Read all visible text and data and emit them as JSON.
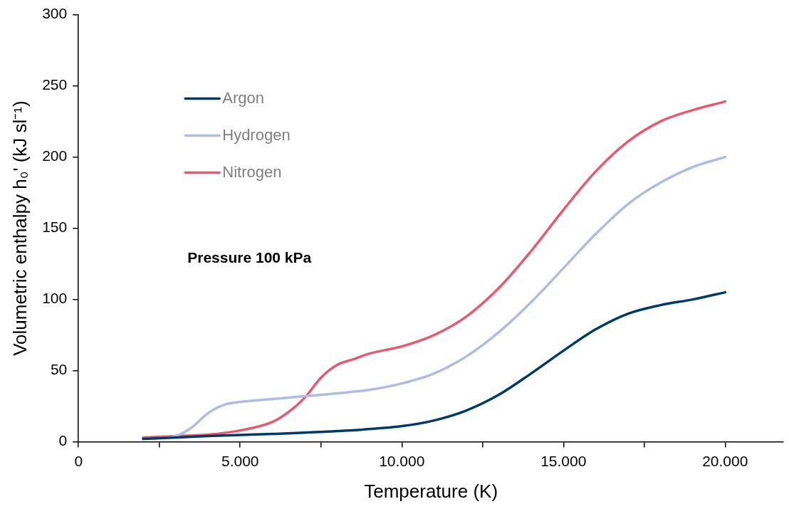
{
  "chart_data": {
    "type": "line",
    "xlabel": "Temperature (K)",
    "ylabel": "Volumetric enthalpy h₀' (kJ sl⁻¹)",
    "annotations": [
      "Pressure 100 kPa"
    ],
    "xlim": [
      0,
      21800
    ],
    "xticks": [
      0,
      {
        "value": 2500,
        "label": null
      },
      {
        "value": 5000,
        "label": "5.000"
      },
      {
        "value": 7500,
        "label": null
      },
      {
        "value": 10000,
        "label": "10.000"
      },
      {
        "value": 12500,
        "label": null
      },
      {
        "value": 15000,
        "label": "15.000"
      },
      {
        "value": 17500,
        "label": null
      },
      {
        "value": 20000,
        "label": "20.000"
      }
    ],
    "ylim": [
      0,
      300
    ],
    "yticks": [
      0,
      50,
      100,
      150,
      200,
      250,
      300
    ],
    "grid": false,
    "legend": "top left",
    "marker": "none",
    "line_style": "solid",
    "series": [
      {
        "name": "Argon",
        "color": "#003a66",
        "x": [
          2000,
          4000,
          6000,
          8000,
          10000,
          11000,
          12000,
          13000,
          14000,
          15000,
          16000,
          17000,
          18000,
          19000,
          20000
        ],
        "values": [
          2,
          4,
          5.5,
          7.5,
          11,
          15,
          22,
          33,
          48,
          64,
          79,
          90,
          96,
          100,
          105
        ]
      },
      {
        "name": "Hydrogen",
        "color": "#aebce4",
        "x": [
          2000,
          3000,
          3500,
          4000,
          4500,
          5000,
          6000,
          7000,
          8000,
          9000,
          10000,
          11000,
          12000,
          13000,
          14000,
          15000,
          16000,
          17000,
          18000,
          19000,
          20000
        ],
        "values": [
          2,
          4,
          10,
          20,
          26,
          28,
          30,
          32,
          34,
          36.5,
          41,
          48,
          60,
          77,
          98,
          122,
          146,
          167,
          182,
          193,
          200
        ]
      },
      {
        "name": "Nitrogen",
        "color": "#e8596e",
        "x": [
          2000,
          3000,
          4000,
          5000,
          6000,
          6500,
          7000,
          7500,
          8000,
          8500,
          9000,
          10000,
          11000,
          12000,
          13000,
          14000,
          15000,
          16000,
          17000,
          18000,
          19000,
          20000
        ],
        "values": [
          3,
          4,
          5,
          8,
          14,
          21,
          31,
          45,
          54,
          58,
          62,
          67,
          75,
          88,
          108,
          134,
          163,
          190,
          211,
          225,
          233,
          239
        ]
      }
    ]
  }
}
